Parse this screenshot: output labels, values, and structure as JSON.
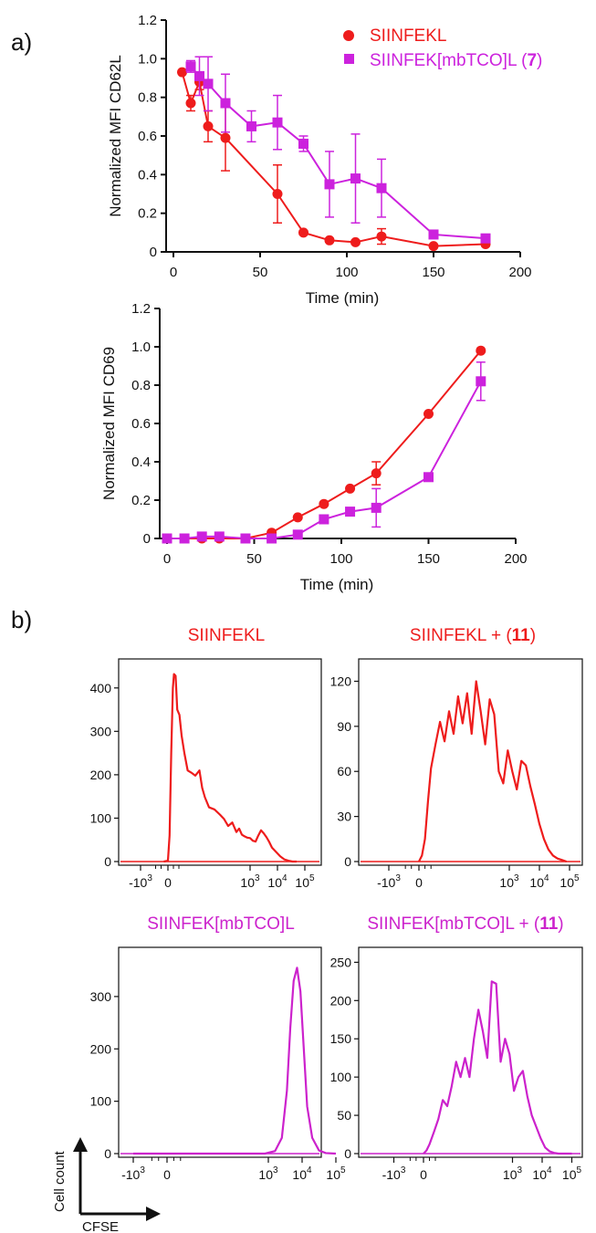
{
  "panel_labels": {
    "a": "a)",
    "b": "b)"
  },
  "colors": {
    "red": "#ee1c1c",
    "magenta": "#cc22dd",
    "hist_magenta": "#cc22cc"
  },
  "chart_data": [
    {
      "type": "line",
      "id": "cd62l",
      "xlabel": "Time (min)",
      "ylabel": "Normalized MFI CD62L",
      "xlim": [
        0,
        200
      ],
      "ylim": [
        0,
        1.2
      ],
      "xticks": [
        0,
        50,
        100,
        150,
        200
      ],
      "yticks": [
        "0",
        "0.2",
        "0.4",
        "0.6",
        "0.8",
        "1.0",
        "1.2"
      ],
      "legend_position": "top-right",
      "series": [
        {
          "name": "SIINFEKL",
          "color": "#ee1c1c",
          "marker": "circle",
          "x": [
            5,
            10,
            15,
            20,
            30,
            60,
            75,
            90,
            105,
            120,
            150,
            180
          ],
          "y": [
            0.93,
            0.77,
            0.88,
            0.65,
            0.59,
            0.3,
            0.1,
            0.06,
            0.05,
            0.08,
            0.03,
            0.04
          ],
          "err": [
            0,
            0.04,
            0.04,
            0.08,
            0.17,
            0.15,
            0.01,
            0.01,
            0.01,
            0.04,
            0.0,
            0.01
          ]
        },
        {
          "name": "SIINFEK[mbTCO]L (7)",
          "name_parts": [
            "SIINFEK[mbTCO]L (",
            "7",
            ")"
          ],
          "color": "#cc22dd",
          "marker": "square",
          "x": [
            10,
            15,
            20,
            30,
            45,
            60,
            75,
            90,
            105,
            120,
            150,
            180
          ],
          "y": [
            0.96,
            0.91,
            0.87,
            0.77,
            0.65,
            0.67,
            0.56,
            0.35,
            0.38,
            0.33,
            0.09,
            0.07
          ],
          "err": [
            0.03,
            0.1,
            0.14,
            0.15,
            0.08,
            0.14,
            0.04,
            0.17,
            0.23,
            0.15,
            0.01,
            0.01
          ]
        }
      ]
    },
    {
      "type": "line",
      "id": "cd69",
      "xlabel": "Time (min)",
      "ylabel": "Normalized MFI CD69",
      "xlim": [
        0,
        200
      ],
      "ylim": [
        0,
        1.2
      ],
      "xticks": [
        0,
        50,
        100,
        150,
        200
      ],
      "yticks": [
        "0",
        "0.2",
        "0.4",
        "0.6",
        "0.8",
        "1.0",
        "1.2"
      ],
      "series": [
        {
          "name": "SIINFEKL",
          "color": "#ee1c1c",
          "marker": "circle",
          "x": [
            0,
            10,
            20,
            30,
            45,
            60,
            75,
            90,
            105,
            120,
            150,
            180
          ],
          "y": [
            0.0,
            0.0,
            0.0,
            0.0,
            0.0,
            0.03,
            0.11,
            0.18,
            0.26,
            0.34,
            0.65,
            0.98
          ],
          "err": [
            0,
            0,
            0,
            0,
            0,
            0,
            0,
            0,
            0,
            0.06,
            0,
            0
          ]
        },
        {
          "name": "SIINFEK[mbTCO]L (7)",
          "color": "#cc22dd",
          "marker": "square",
          "x": [
            0,
            10,
            20,
            30,
            45,
            60,
            75,
            90,
            105,
            120,
            150,
            180
          ],
          "y": [
            0.0,
            0.0,
            0.01,
            0.01,
            0.0,
            0.0,
            0.02,
            0.1,
            0.14,
            0.16,
            0.32,
            0.82
          ],
          "err": [
            0,
            0,
            0,
            0,
            0,
            0,
            0,
            0,
            0,
            0.1,
            0,
            0.1
          ]
        }
      ]
    },
    {
      "type": "histogram",
      "id": "hist1",
      "title": "SIINFEKL",
      "color": "#ee1c1c",
      "ylim": [
        0,
        450
      ],
      "yticks": [
        "0",
        "100",
        "200",
        "300",
        "400"
      ],
      "xticks": [
        "-10",
        "0",
        "10",
        "10",
        "10"
      ],
      "xtick_exps": [
        "3",
        "",
        "3",
        "4",
        "5"
      ],
      "x": [
        -0.15,
        0.0,
        0.06,
        0.12,
        0.18,
        0.22,
        0.28,
        0.34,
        0.42,
        0.5,
        0.6,
        0.72,
        0.85,
        1.0,
        1.15,
        1.25,
        1.35,
        1.5,
        1.7,
        1.9,
        2.05,
        2.2,
        2.35,
        2.5,
        2.6,
        2.7,
        2.8,
        2.9,
        3.0,
        3.1,
        3.2,
        3.3,
        3.4,
        3.5,
        3.6,
        3.7,
        3.8,
        3.95,
        4.1,
        4.25,
        4.4,
        4.55,
        4.7
      ],
      "y": [
        0,
        2,
        60,
        250,
        400,
        432,
        428,
        350,
        338,
        290,
        250,
        210,
        205,
        198,
        210,
        170,
        148,
        125,
        120,
        108,
        98,
        82,
        90,
        68,
        76,
        62,
        58,
        55,
        54,
        48,
        46,
        60,
        72,
        65,
        56,
        45,
        32,
        22,
        12,
        5,
        2,
        0,
        0
      ]
    },
    {
      "type": "histogram",
      "id": "hist2",
      "title": "SIINFEKL + (11)",
      "title_parts": [
        "SIINFEKL + (",
        "11",
        ")"
      ],
      "color": "#ee1c1c",
      "ylim": [
        0,
        130
      ],
      "yticks": [
        "0",
        "30",
        "60",
        "90",
        "120"
      ],
      "xticks": [
        "-10",
        "0",
        "10",
        "10",
        "10"
      ],
      "xtick_exps": [
        "3",
        "",
        "3",
        "4",
        "5"
      ],
      "x": [
        0.0,
        0.1,
        0.2,
        0.3,
        0.4,
        0.55,
        0.7,
        0.85,
        1.0,
        1.15,
        1.3,
        1.45,
        1.6,
        1.75,
        1.9,
        2.05,
        2.2,
        2.35,
        2.5,
        2.65,
        2.8,
        2.95,
        3.1,
        3.25,
        3.4,
        3.55,
        3.7,
        3.85,
        4.0,
        4.15,
        4.3,
        4.45,
        4.6,
        4.75,
        4.9
      ],
      "y": [
        0,
        4,
        15,
        40,
        62,
        78,
        93,
        80,
        100,
        85,
        110,
        92,
        112,
        85,
        120,
        100,
        78,
        108,
        98,
        60,
        52,
        74,
        60,
        48,
        67,
        64,
        50,
        38,
        25,
        15,
        8,
        4,
        2,
        1,
        0
      ]
    },
    {
      "type": "histogram",
      "id": "hist3",
      "title": "SIINFEK[mbTCO]L",
      "color": "#cc22cc",
      "ylim": [
        0,
        380
      ],
      "yticks": [
        "0",
        "100",
        "200",
        "300"
      ],
      "xticks": [
        "-10",
        "0",
        "10",
        "10",
        "10"
      ],
      "xtick_exps": [
        "3",
        "",
        "3",
        "4",
        "5"
      ],
      "x": [
        -1.0,
        2.5,
        2.9,
        3.2,
        3.4,
        3.55,
        3.65,
        3.75,
        3.85,
        3.95,
        4.05,
        4.15,
        4.3,
        4.5,
        4.7,
        5.0
      ],
      "y": [
        0,
        0,
        0,
        5,
        30,
        120,
        240,
        330,
        355,
        310,
        200,
        90,
        30,
        6,
        1,
        0
      ]
    },
    {
      "type": "histogram",
      "id": "hist4",
      "title": "SIINFEK[mbTCO]L + (11)",
      "title_parts": [
        "SIINFEK[mbTCO]L + (",
        "11",
        ")"
      ],
      "color": "#cc22cc",
      "ylim": [
        0,
        260
      ],
      "yticks": [
        "0",
        "50",
        "100",
        "150",
        "200",
        "250"
      ],
      "xticks": [
        "-10",
        "0",
        "10",
        "10",
        "10"
      ],
      "xtick_exps": [
        "3",
        "",
        "3",
        "4",
        "5"
      ],
      "x": [
        0.0,
        0.1,
        0.2,
        0.35,
        0.5,
        0.65,
        0.8,
        0.95,
        1.1,
        1.25,
        1.4,
        1.55,
        1.7,
        1.85,
        2.0,
        2.15,
        2.3,
        2.45,
        2.6,
        2.75,
        2.9,
        3.05,
        3.2,
        3.35,
        3.5,
        3.65,
        3.8,
        3.95,
        4.1,
        4.25,
        4.4,
        4.55,
        4.7,
        4.85,
        5.0
      ],
      "y": [
        0,
        4,
        12,
        28,
        45,
        70,
        62,
        88,
        120,
        100,
        125,
        100,
        150,
        188,
        160,
        125,
        225,
        222,
        120,
        150,
        130,
        82,
        100,
        108,
        75,
        50,
        35,
        20,
        8,
        3,
        1,
        0,
        0,
        0,
        0
      ]
    }
  ],
  "axis_key": {
    "y_label": "Cell count",
    "x_label": "CFSE"
  }
}
